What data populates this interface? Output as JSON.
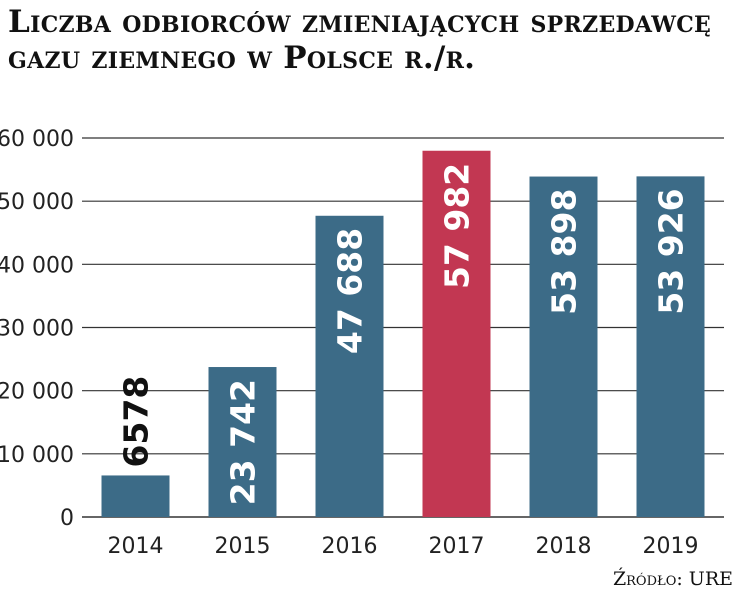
{
  "title": "Liczba odbiorców zmieniających sprzedawcę gazu ziemnego w Polsce r./r.",
  "source": "Źródło: URE",
  "colors": {
    "bar": "#3c6b87",
    "highlight": "#c23752",
    "grid": "#333333",
    "label_light": "#ffffff",
    "label_dark": "#111111"
  },
  "chart_data": {
    "type": "bar",
    "title": "Liczba odbiorców zmieniających sprzedawcę gazu ziemnego w Polsce r./r.",
    "categories": [
      "2014",
      "2015",
      "2016",
      "2017",
      "2018",
      "2019"
    ],
    "values": [
      6578,
      23742,
      47688,
      57982,
      53898,
      53926
    ],
    "value_labels": [
      "6578",
      "23 742",
      "47 688",
      "57 982",
      "53 898",
      "53 926"
    ],
    "highlight_category": "2017",
    "ylim": [
      0,
      60000
    ],
    "yticks": [
      0,
      10000,
      20000,
      30000,
      40000,
      50000,
      60000
    ],
    "ytick_labels": [
      "0",
      "10 000",
      "20 000",
      "30 000",
      "40 000",
      "50 000",
      "60 000"
    ],
    "grid": true,
    "xlabel": "",
    "ylabel": ""
  }
}
